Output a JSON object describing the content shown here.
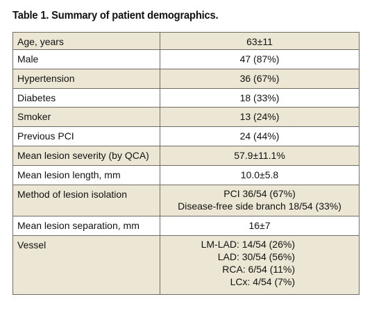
{
  "caption": "Table 1. Summary of patient demographics.",
  "rows": [
    {
      "label": "Age, years",
      "value": [
        "63±11"
      ]
    },
    {
      "label": "Male",
      "value": [
        "47 (87%)"
      ]
    },
    {
      "label": "Hypertension",
      "value": [
        "36 (67%)"
      ]
    },
    {
      "label": "Diabetes",
      "value": [
        "18 (33%)"
      ]
    },
    {
      "label": "Smoker",
      "value": [
        "13 (24%)"
      ]
    },
    {
      "label": "Previous PCI",
      "value": [
        "24 (44%)"
      ]
    },
    {
      "label": "Mean lesion severity (by QCA)",
      "value": [
        "57.9±11.1%"
      ]
    },
    {
      "label": "Mean lesion length, mm",
      "value": [
        "10.0±5.8"
      ]
    },
    {
      "label": "Method of lesion isolation",
      "value": [
        "PCI 36/54 (67%)",
        "Disease-free side branch 18/54 (33%)"
      ]
    },
    {
      "label": "Mean lesion separation, mm",
      "value": [
        "16±7"
      ]
    },
    {
      "label": "Vessel",
      "value": [
        "LM-LAD: 14/54 (26%)",
        "LAD: 30/54 (56%)",
        "RCA: 6/54 (11%)",
        "LCx: 4/54 (7%)"
      ]
    }
  ],
  "colors": {
    "shaded_row": "#ece6d4",
    "plain_row": "#ffffff",
    "border": "#6f6b62"
  }
}
